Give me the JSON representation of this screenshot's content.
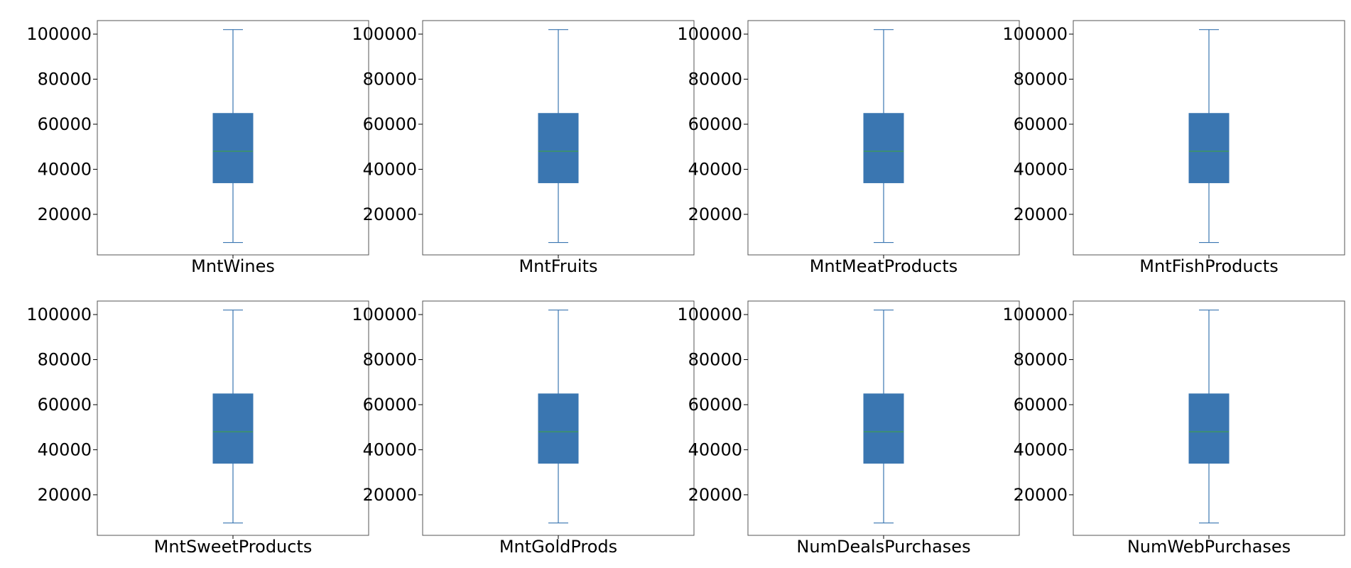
{
  "chart_data": [
    {
      "type": "box",
      "category": "MntWines",
      "yticks": [
        20000,
        40000,
        60000,
        80000,
        100000
      ],
      "ylim": [
        2000,
        106000
      ],
      "box": {
        "whisker_low": 7500,
        "q1": 34000,
        "median": 48000,
        "q3": 64800,
        "whisker_high": 102000
      },
      "grid": false
    },
    {
      "type": "box",
      "category": "MntFruits",
      "yticks": [
        20000,
        40000,
        60000,
        80000,
        100000
      ],
      "ylim": [
        2000,
        106000
      ],
      "box": {
        "whisker_low": 7500,
        "q1": 34000,
        "median": 48000,
        "q3": 64800,
        "whisker_high": 102000
      },
      "grid": false
    },
    {
      "type": "box",
      "category": "MntMeatProducts",
      "yticks": [
        20000,
        40000,
        60000,
        80000,
        100000
      ],
      "ylim": [
        2000,
        106000
      ],
      "box": {
        "whisker_low": 7500,
        "q1": 34000,
        "median": 48000,
        "q3": 64800,
        "whisker_high": 102000
      },
      "grid": false
    },
    {
      "type": "box",
      "category": "MntFishProducts",
      "yticks": [
        20000,
        40000,
        60000,
        80000,
        100000
      ],
      "ylim": [
        2000,
        106000
      ],
      "box": {
        "whisker_low": 7500,
        "q1": 34000,
        "median": 48000,
        "q3": 64800,
        "whisker_high": 102000
      },
      "grid": false
    },
    {
      "type": "box",
      "category": "MntSweetProducts",
      "yticks": [
        20000,
        40000,
        60000,
        80000,
        100000
      ],
      "ylim": [
        2000,
        106000
      ],
      "box": {
        "whisker_low": 7500,
        "q1": 34000,
        "median": 48000,
        "q3": 64800,
        "whisker_high": 102000
      },
      "grid": false
    },
    {
      "type": "box",
      "category": "MntGoldProds",
      "yticks": [
        20000,
        40000,
        60000,
        80000,
        100000
      ],
      "ylim": [
        2000,
        106000
      ],
      "box": {
        "whisker_low": 7500,
        "q1": 34000,
        "median": 48000,
        "q3": 64800,
        "whisker_high": 102000
      },
      "grid": false
    },
    {
      "type": "box",
      "category": "NumDealsPurchases",
      "yticks": [
        20000,
        40000,
        60000,
        80000,
        100000
      ],
      "ylim": [
        2000,
        106000
      ],
      "box": {
        "whisker_low": 7500,
        "q1": 34000,
        "median": 48000,
        "q3": 64800,
        "whisker_high": 102000
      },
      "grid": false
    },
    {
      "type": "box",
      "category": "NumWebPurchases",
      "yticks": [
        20000,
        40000,
        60000,
        80000,
        100000
      ],
      "ylim": [
        2000,
        106000
      ],
      "box": {
        "whisker_low": 7500,
        "q1": 34000,
        "median": 48000,
        "q3": 64800,
        "whisker_high": 102000
      },
      "grid": false
    }
  ],
  "colors": {
    "box_fill": "#3a76b1",
    "whisker": "#3a76b1",
    "median": "#3fa04a",
    "frame": "#555555",
    "text": "#000000"
  }
}
